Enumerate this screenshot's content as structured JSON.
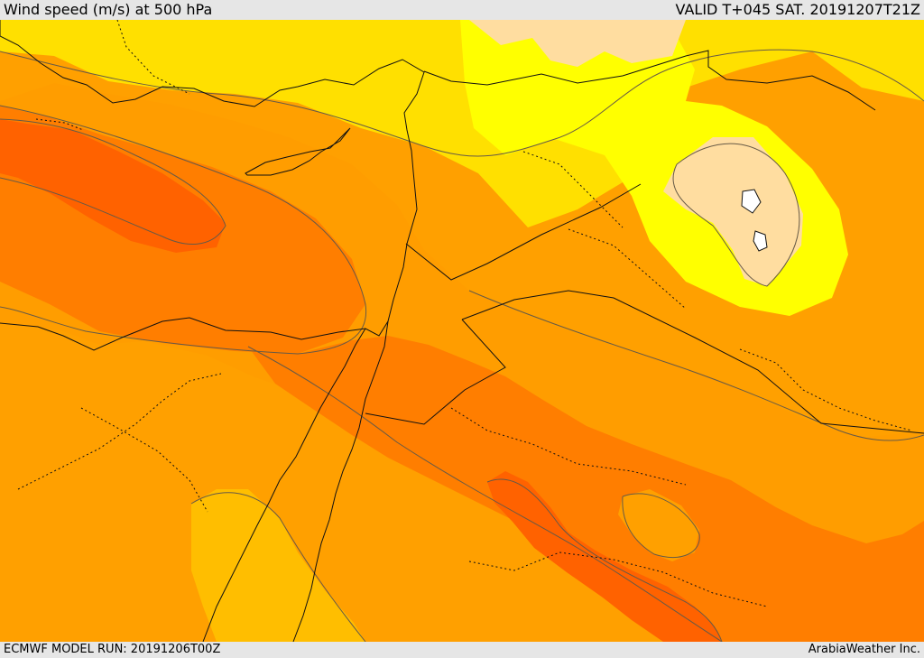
{
  "header": {
    "title": "Wind speed (m/s) at 500 hPa",
    "valid": "VALID T+045 SAT. 20191207T21Z"
  },
  "footer": {
    "model_run": "ECMWF MODEL RUN: 20191206T00Z",
    "credit": "ArabiaWeather Inc."
  },
  "palette": {
    "background": "#ffa000",
    "light_yellow": "#ffff00",
    "yellow": "#ffe000",
    "gold": "#ffbe00",
    "orange": "#ff9d00",
    "dark_orange": "#ff7e00",
    "red_orange": "#ff6200",
    "peach": "#ffdda0",
    "white": "#ffffff"
  }
}
